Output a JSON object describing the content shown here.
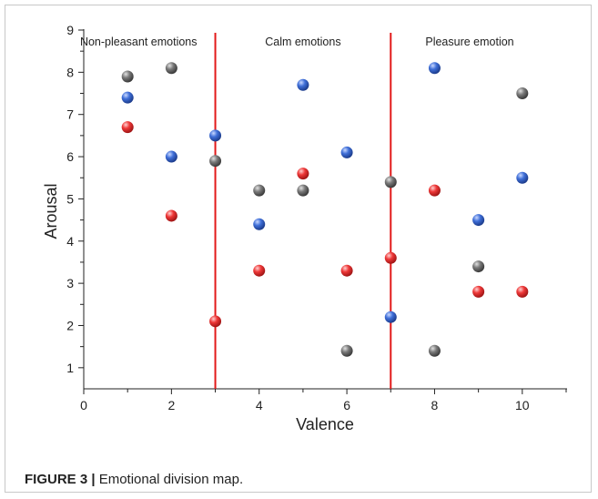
{
  "caption": {
    "label": "FIGURE 3 |",
    "text": " Emotional division map."
  },
  "colors": {
    "divider": "#e21a1a",
    "blue": "#2f5cc4",
    "red": "#e52b2b",
    "gray": "#6b6b6b"
  },
  "chart_data": {
    "type": "scatter",
    "xlabel": "Valence",
    "ylabel": "Arousal",
    "xlim": [
      0,
      11
    ],
    "ylim": [
      0.5,
      9
    ],
    "xticks": [
      0,
      2,
      4,
      6,
      8,
      10
    ],
    "yticks": [
      1,
      2,
      3,
      4,
      5,
      6,
      7,
      8,
      9
    ],
    "grid": false,
    "dividers": [
      3,
      7
    ],
    "regions": [
      {
        "label": "Non-pleasant emotions",
        "x": 1.25
      },
      {
        "label": "Calm emotions",
        "x": 5
      },
      {
        "label": "Pleasure emotion",
        "x": 8.8
      }
    ],
    "series": [
      {
        "color": "blue",
        "points": [
          [
            1,
            7.4
          ],
          [
            2,
            6.0
          ],
          [
            3,
            6.5
          ],
          [
            4,
            4.4
          ],
          [
            5,
            7.7
          ],
          [
            6,
            6.1
          ],
          [
            7,
            2.2
          ],
          [
            8,
            8.1
          ],
          [
            9,
            4.5
          ],
          [
            10,
            5.5
          ]
        ]
      },
      {
        "color": "red",
        "points": [
          [
            1,
            6.7
          ],
          [
            2,
            4.6
          ],
          [
            3,
            2.1
          ],
          [
            4,
            3.3
          ],
          [
            5,
            5.6
          ],
          [
            6,
            3.3
          ],
          [
            7,
            3.6
          ],
          [
            8,
            5.2
          ],
          [
            9,
            2.8
          ],
          [
            10,
            2.8
          ]
        ]
      },
      {
        "color": "gray",
        "points": [
          [
            1,
            7.9
          ],
          [
            2,
            8.1
          ],
          [
            3,
            5.9
          ],
          [
            4,
            5.2
          ],
          [
            5,
            5.2
          ],
          [
            6,
            1.4
          ],
          [
            7,
            5.4
          ],
          [
            8,
            1.4
          ],
          [
            9,
            3.4
          ],
          [
            10,
            7.5
          ]
        ]
      }
    ]
  }
}
